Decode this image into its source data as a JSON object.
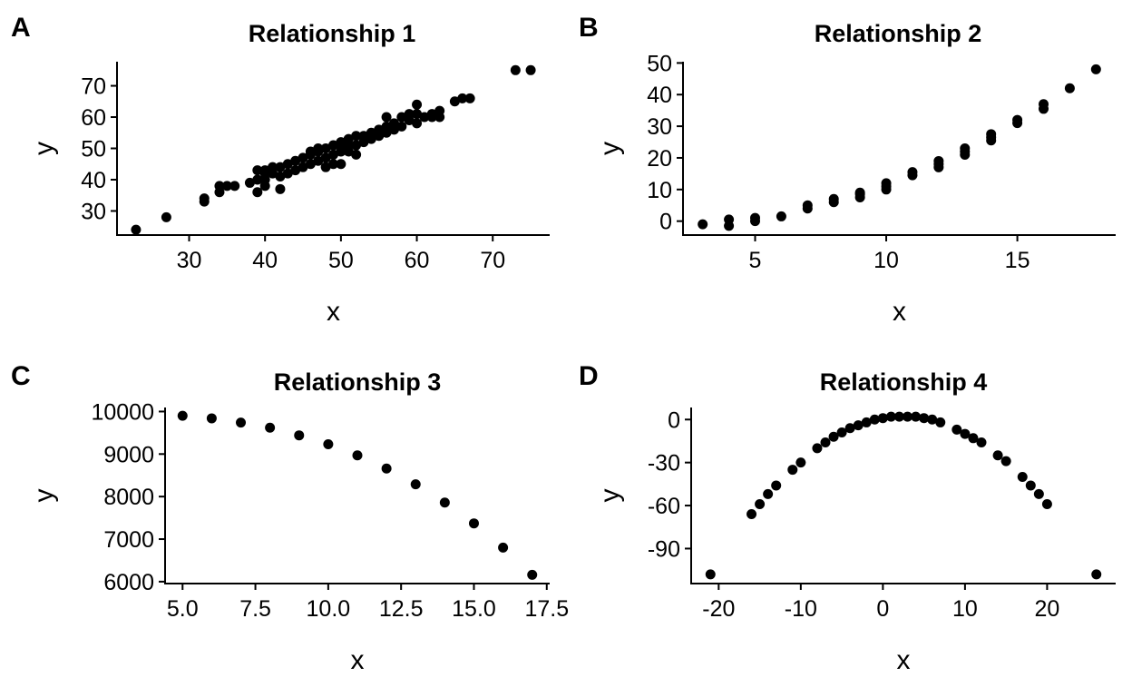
{
  "chart_data": [
    {
      "type": "scatter",
      "panel": "A",
      "title": "Relationship 1",
      "xlabel": "x",
      "ylabel": "y",
      "xlim": [
        20.5,
        77.5
      ],
      "ylim": [
        22.3,
        77.7
      ],
      "xticks": [
        30,
        40,
        50,
        60,
        70
      ],
      "yticks": [
        30,
        40,
        50,
        60,
        70
      ],
      "grid": false,
      "x": [
        23,
        27,
        32,
        32,
        34,
        34,
        35,
        36,
        38,
        39,
        39,
        39,
        40,
        40,
        40,
        40,
        41,
        41,
        42,
        42,
        42,
        43,
        43,
        44,
        44,
        45,
        45,
        46,
        46,
        46,
        47,
        47,
        47,
        48,
        48,
        48,
        49,
        49,
        49,
        50,
        50,
        50,
        50,
        51,
        51,
        51,
        52,
        52,
        52,
        53,
        53,
        54,
        54,
        55,
        55,
        56,
        56,
        56,
        57,
        57,
        58,
        58,
        59,
        59,
        60,
        60,
        60,
        61,
        62,
        62,
        63,
        63,
        65,
        66,
        67,
        73,
        75
      ],
      "y": [
        24,
        28,
        33,
        34,
        36,
        38,
        38,
        38,
        39,
        36,
        40,
        43,
        38,
        40,
        42,
        43,
        42,
        44,
        37,
        41,
        44,
        42,
        45,
        43,
        46,
        44,
        47,
        45,
        48,
        49,
        46,
        49,
        50,
        44,
        47,
        50,
        45,
        48,
        51,
        45,
        49,
        51,
        52,
        49,
        51,
        53,
        48,
        51,
        54,
        52,
        54,
        53,
        55,
        54,
        56,
        55,
        57,
        60,
        56,
        58,
        57,
        60,
        59,
        61,
        58,
        61,
        64,
        60,
        60,
        61,
        60,
        62,
        65,
        66,
        66,
        75,
        75
      ]
    },
    {
      "type": "scatter",
      "panel": "B",
      "title": "Relationship 2",
      "xlabel": "x",
      "ylabel": "y",
      "xlim": [
        2.25,
        18.75
      ],
      "ylim": [
        -4.4,
        50.4
      ],
      "xticks": [
        5,
        10,
        15
      ],
      "yticks": [
        0,
        10,
        20,
        30,
        40,
        50
      ],
      "grid": false,
      "x": [
        3,
        4,
        4,
        5,
        5,
        6,
        7,
        7,
        8,
        8,
        9,
        9,
        9,
        10,
        10,
        10,
        11,
        11,
        12,
        12,
        12,
        13,
        13,
        13,
        14,
        14,
        14,
        15,
        15,
        16,
        16,
        17,
        18
      ],
      "y": [
        -1,
        -1.5,
        0.5,
        0,
        1,
        1.5,
        4,
        5,
        6,
        7,
        7.5,
        8.5,
        9,
        10,
        11,
        12,
        14.5,
        15.5,
        17,
        18,
        19,
        21,
        22,
        23,
        25.5,
        26.5,
        27.5,
        31,
        32,
        35.5,
        37,
        42,
        48
      ]
    },
    {
      "type": "scatter",
      "panel": "C",
      "title": "Relationship 3",
      "xlabel": "x",
      "ylabel": "y",
      "xlim": [
        4.4,
        17.6
      ],
      "ylim": [
        5955,
        10095
      ],
      "xticks": [
        5.0,
        7.5,
        10.0,
        12.5,
        15.0,
        17.5
      ],
      "xtick_labels": [
        "5.0",
        "7.5",
        "10.0",
        "12.5",
        "15.0",
        "17.5"
      ],
      "yticks": [
        6000,
        7000,
        8000,
        9000,
        10000
      ],
      "grid": false,
      "x": [
        5,
        6,
        7,
        8,
        9,
        10,
        11,
        12,
        13,
        14,
        15,
        16,
        17
      ],
      "y": [
        9900,
        9840,
        9740,
        9620,
        9440,
        9230,
        8970,
        8660,
        8290,
        7860,
        7370,
        6800,
        6160
      ]
    },
    {
      "type": "scatter",
      "panel": "D",
      "title": "Relationship 4",
      "xlabel": "x",
      "ylabel": "y",
      "xlim": [
        -23.35,
        28.35
      ],
      "ylim": [
        -114.4,
        8.4
      ],
      "xticks": [
        -20,
        -10,
        0,
        10,
        20
      ],
      "yticks": [
        0,
        -30,
        -60,
        -90
      ],
      "grid": false,
      "x": [
        -21,
        -16,
        -15,
        -14,
        -13,
        -11,
        -10,
        -8,
        -7,
        -6,
        -5,
        -4,
        -3,
        -2,
        -1,
        0,
        1,
        2,
        3,
        4,
        5,
        6,
        7,
        9,
        10,
        11,
        12,
        14,
        15,
        17,
        18,
        19,
        20,
        26
      ],
      "y": [
        -108,
        -66,
        -59,
        -52,
        -46,
        -35,
        -30,
        -20,
        -16,
        -12,
        -9,
        -6,
        -4,
        -2,
        0,
        1,
        2,
        2,
        2,
        2,
        1,
        0,
        -2,
        -7,
        -10,
        -13,
        -16,
        -25,
        -29,
        -40,
        -46,
        -52,
        -59,
        -108
      ]
    }
  ]
}
